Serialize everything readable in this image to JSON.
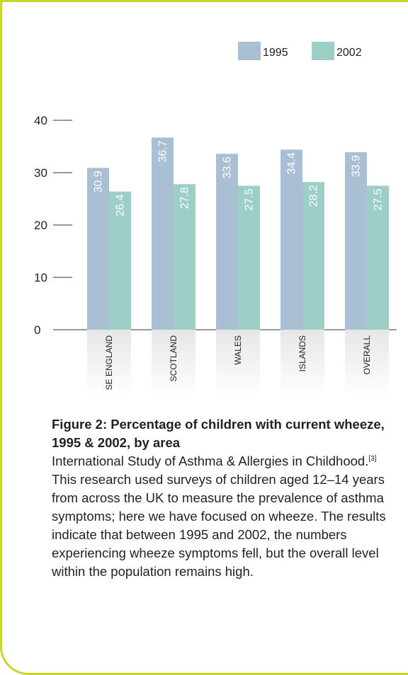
{
  "chart_data": {
    "type": "bar",
    "categories": [
      "SE ENGLAND",
      "SCOTLAND",
      "WALES",
      "ISLANDS",
      "OVERALL"
    ],
    "series": [
      {
        "name": "1995",
        "values": [
          30.9,
          36.7,
          33.6,
          34.4,
          33.9
        ]
      },
      {
        "name": "2002",
        "values": [
          26.4,
          27.8,
          27.5,
          28.2,
          27.5
        ]
      }
    ],
    "ylim": [
      0,
      40
    ],
    "yticks": [
      0,
      10,
      20,
      30,
      40
    ],
    "legend_position": "top-right",
    "grid": false,
    "colors": {
      "1995": "#a9bfd4",
      "2002": "#9ecfc6",
      "frame": "#c9d62a",
      "label_bg": "#ececec"
    }
  },
  "caption": {
    "title": "Figure 2: Percentage of children with current wheeze, 1995 & 2002, by area",
    "body_start": "International Study of Asthma & Allergies in Childhood.",
    "ref": "[3]",
    "body_rest": " This research used surveys of children aged 12–14 years from across the UK to measure the prevalence of asthma symptoms; here we have focused on wheeze. The results indicate that between 1995 and 2002, the numbers experiencing wheeze symptoms fell, but the overall level within the population remains high."
  }
}
